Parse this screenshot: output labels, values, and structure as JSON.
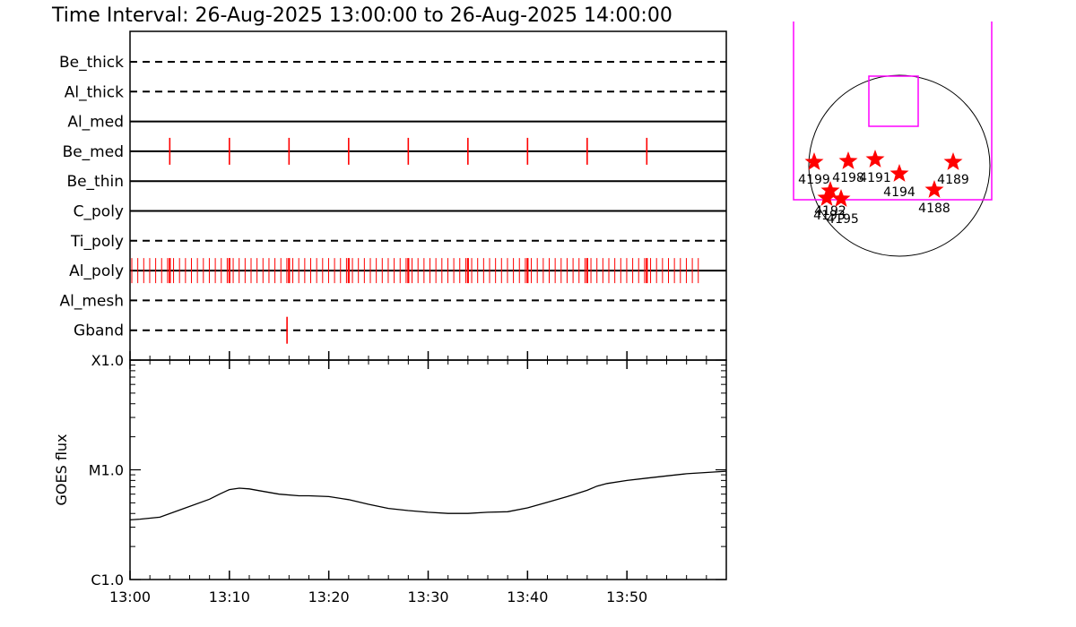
{
  "title": "Time Interval: 26-Aug-2025 13:00:00 to 26-Aug-2025 14:00:00",
  "chart_data": [
    {
      "type": "timeline",
      "x_ticks": [
        "13:00",
        "13:10",
        "13:20",
        "13:30",
        "13:40",
        "13:50"
      ],
      "x_range_minutes": [
        0,
        60
      ],
      "channels": [
        {
          "name": "Be_thick",
          "style": "dashed",
          "events": []
        },
        {
          "name": "Al_thick",
          "style": "dashed",
          "events": []
        },
        {
          "name": "Al_med",
          "style": "solid",
          "events": []
        },
        {
          "name": "Be_med",
          "style": "solid",
          "events": [
            4,
            10,
            16,
            22,
            28,
            34,
            40,
            46,
            52
          ]
        },
        {
          "name": "Be_thin",
          "style": "solid",
          "events": []
        },
        {
          "name": "C_poly",
          "style": "solid",
          "events": []
        },
        {
          "name": "Ti_poly",
          "style": "dashed",
          "events": []
        },
        {
          "name": "Al_poly",
          "style": "solid",
          "events_range": [
            0,
            57
          ],
          "events_step": 0.6,
          "major_events": [
            4,
            10,
            16,
            22,
            28,
            34,
            40,
            46,
            52
          ]
        },
        {
          "name": "Al_mesh",
          "style": "dashed",
          "events": []
        },
        {
          "name": "Gband",
          "style": "dashed",
          "events": [
            15.8
          ]
        }
      ]
    },
    {
      "type": "line",
      "ylabel": "GOES flux",
      "y_scale": "log",
      "y_ticks": [
        "C1.0",
        "M1.0",
        "X1.0"
      ],
      "ylim": [
        "C1.0",
        "X1.0"
      ],
      "x_ticks": [
        "13:00",
        "13:10",
        "13:20",
        "13:30",
        "13:40",
        "13:50"
      ],
      "x": [
        0,
        1,
        3,
        5,
        8,
        9,
        10,
        11,
        12,
        13,
        15,
        17,
        18,
        20,
        22,
        24,
        26,
        28,
        30,
        32,
        34,
        36,
        38,
        40,
        42,
        44,
        46,
        47,
        48,
        50,
        52,
        54,
        56,
        58,
        60
      ],
      "y": [
        3.5e-06,
        3.55e-06,
        3.7e-06,
        4.3e-06,
        5.4e-06,
        6e-06,
        6.6e-06,
        6.8e-06,
        6.7e-06,
        6.45e-06,
        6e-06,
        5.8e-06,
        5.8e-06,
        5.7e-06,
        5.35e-06,
        4.85e-06,
        4.45e-06,
        4.25e-06,
        4.1e-06,
        4e-06,
        4e-06,
        4.1e-06,
        4.15e-06,
        4.5e-06,
        5.05e-06,
        5.7e-06,
        6.5e-06,
        7.1e-06,
        7.5e-06,
        8e-06,
        8.4e-06,
        8.8e-06,
        9.2e-06,
        9.45e-06,
        9.7e-06
      ]
    },
    {
      "type": "scatter",
      "annotation": "solar disk active regions",
      "regions": [
        "4199",
        "4198",
        "4191",
        "4194",
        "4189",
        "4188",
        "4192",
        "4193",
        "4195"
      ]
    }
  ],
  "colors": {
    "events": "#ff0000",
    "fov": "#ff00ff",
    "axes": "#000000"
  }
}
